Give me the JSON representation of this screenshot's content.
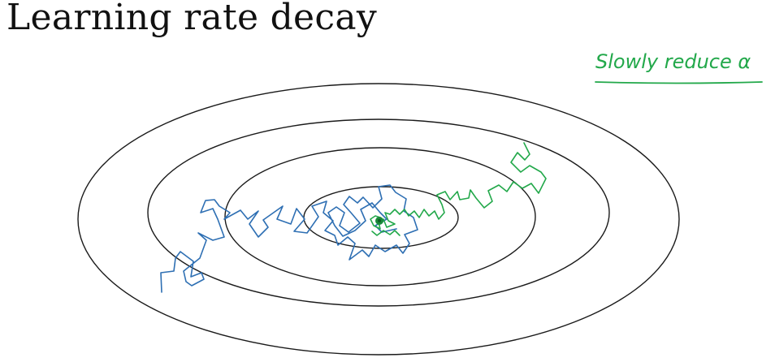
{
  "slide": {
    "title": "Learning rate decay"
  },
  "annotation": {
    "text": "Slowly reduce α",
    "color": "#22a84a"
  },
  "colors": {
    "contour": "#1a1a1a",
    "fixed_lr_path": "#2e6fb3",
    "decayed_lr_path": "#22a84a"
  },
  "icons": {
    "minimum_marker": "green-dot"
  }
}
